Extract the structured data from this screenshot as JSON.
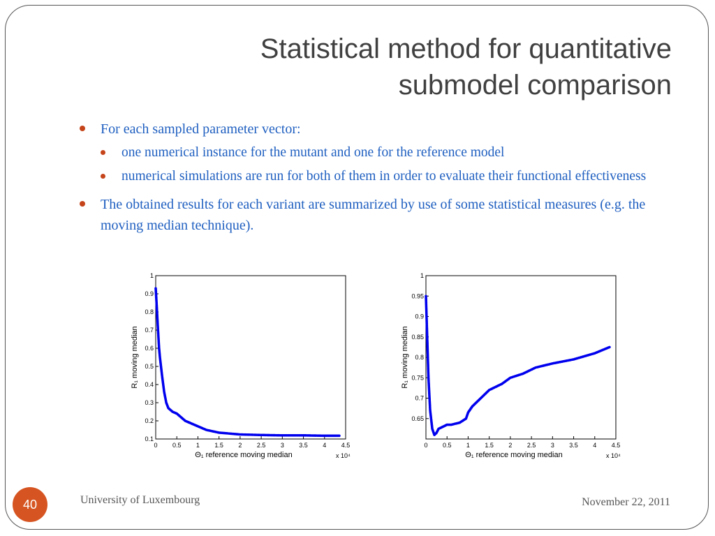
{
  "slide": {
    "title_line1": "Statistical method for quantitative",
    "title_line2": "submodel comparison",
    "bullets": [
      "For each sampled parameter vector:",
      "one numerical instance for the mutant and one for the reference model",
      "numerical simulations are run for both of them in order to evaluate their functional effectiveness",
      "The obtained results for each variant are summarized by use of some statistical measures (e.g. the moving median technique)."
    ],
    "footer_left": "University of Luxembourg",
    "footer_right": "November 22, 2011",
    "page_number": "40"
  },
  "colors": {
    "accent": "#c5441a",
    "text": "#1f5fc0",
    "series": "#0000ee"
  },
  "chart_data": [
    {
      "type": "scatter",
      "xlabel": "Θ₁ reference moving median",
      "ylabel": "R₁ moving median",
      "x_multiplier": "x 10⁴",
      "xlim": [
        0,
        4.5
      ],
      "ylim": [
        0.1,
        1
      ],
      "xticks": [
        "0",
        "0.5",
        "1",
        "1.5",
        "2",
        "2.5",
        "3",
        "3.5",
        "4",
        "4.5"
      ],
      "yticks": [
        "0.1",
        "0.2",
        "0.3",
        "0.4",
        "0.5",
        "0.6",
        "0.7",
        "0.8",
        "0.9",
        "1"
      ],
      "series": [
        {
          "x": [
            0.0,
            0.02,
            0.05,
            0.08,
            0.1,
            0.15,
            0.2,
            0.25,
            0.3,
            0.4,
            0.5,
            0.6,
            0.7,
            0.8,
            1.0,
            1.2,
            1.5,
            2.0,
            2.5,
            3.0,
            3.5,
            4.0,
            4.35
          ],
          "y": [
            0.93,
            0.85,
            0.72,
            0.6,
            0.55,
            0.45,
            0.36,
            0.3,
            0.27,
            0.25,
            0.24,
            0.22,
            0.2,
            0.19,
            0.17,
            0.15,
            0.135,
            0.125,
            0.122,
            0.12,
            0.12,
            0.118,
            0.118
          ]
        }
      ]
    },
    {
      "type": "scatter",
      "xlabel": "Θ₁ reference moving median",
      "ylabel": "R₁ moving median",
      "x_multiplier": "x 10⁴",
      "xlim": [
        0,
        4.5
      ],
      "ylim": [
        0.6,
        1
      ],
      "xticks": [
        "0",
        "0.5",
        "1",
        "1.5",
        "2",
        "2.5",
        "3",
        "3.5",
        "4",
        "4.5"
      ],
      "yticks": [
        "0.65",
        "0.7",
        "0.75",
        "0.8",
        "0.85",
        "0.9",
        "0.95",
        "1"
      ],
      "series": [
        {
          "x": [
            0.0,
            0.03,
            0.06,
            0.1,
            0.15,
            0.2,
            0.25,
            0.3,
            0.4,
            0.5,
            0.6,
            0.8,
            0.95,
            1.0,
            1.1,
            1.3,
            1.5,
            1.8,
            2.0,
            2.3,
            2.6,
            3.0,
            3.5,
            4.0,
            4.35
          ],
          "y": [
            0.95,
            0.85,
            0.75,
            0.67,
            0.625,
            0.61,
            0.615,
            0.625,
            0.63,
            0.635,
            0.635,
            0.64,
            0.65,
            0.665,
            0.68,
            0.7,
            0.72,
            0.735,
            0.75,
            0.76,
            0.775,
            0.785,
            0.795,
            0.81,
            0.825
          ]
        }
      ]
    }
  ]
}
